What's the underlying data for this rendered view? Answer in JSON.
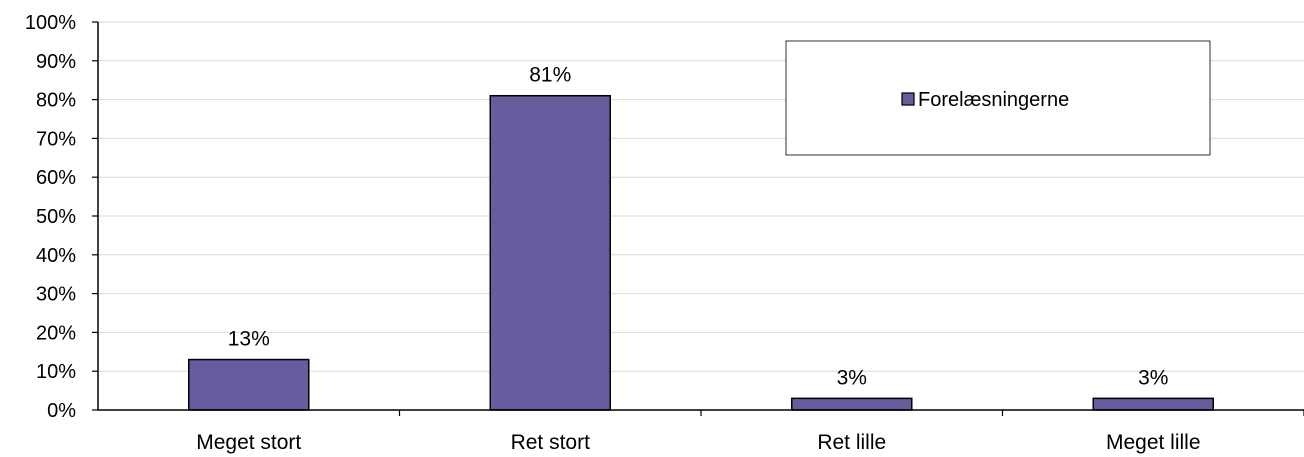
{
  "chart_data": {
    "type": "bar",
    "categories": [
      "Meget stort",
      "Ret stort",
      "Ret lille",
      "Meget lille"
    ],
    "series": [
      {
        "name": "Forelæsningerne",
        "values": [
          13,
          81,
          3,
          3
        ],
        "color": "#665c9e"
      }
    ],
    "data_labels": [
      "13%",
      "81%",
      "3%",
      "3%"
    ],
    "ylim": [
      0,
      100
    ],
    "yticks": [
      0,
      10,
      20,
      30,
      40,
      50,
      60,
      70,
      80,
      90,
      100
    ],
    "ytick_labels": [
      "0%",
      "10%",
      "20%",
      "30%",
      "40%",
      "50%",
      "60%",
      "70%",
      "80%",
      "90%",
      "100%"
    ],
    "grid": true,
    "legend": "top-right"
  }
}
